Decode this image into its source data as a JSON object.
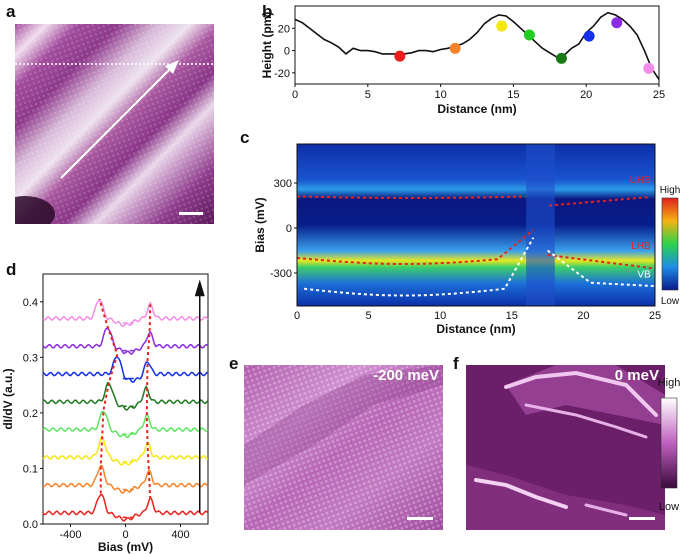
{
  "panels": {
    "a": {
      "letter": "a"
    },
    "b": {
      "letter": "b"
    },
    "c": {
      "letter": "c"
    },
    "d": {
      "letter": "d"
    },
    "e": {
      "letter": "e",
      "label": "-200 meV"
    },
    "f": {
      "letter": "f",
      "label": "0 meV"
    }
  },
  "chart_data": [
    {
      "id": "b",
      "type": "line",
      "xlabel": "Distance (nm)",
      "ylabel": "Height (pm)",
      "xlim": [
        0,
        25
      ],
      "ylim": [
        -30,
        40
      ],
      "xticks": [
        "0",
        "5",
        "10",
        "15",
        "20",
        "25"
      ],
      "yticks": [
        "20",
        "0",
        "-20"
      ],
      "profile": {
        "x": [
          0,
          0.5,
          1,
          1.5,
          2,
          2.5,
          3,
          3.5,
          4,
          4.5,
          5,
          5.5,
          6,
          6.5,
          7,
          7.5,
          8,
          8.5,
          9,
          9.5,
          10,
          10.5,
          11,
          11.5,
          12,
          12.5,
          13,
          13.5,
          14,
          14.5,
          15,
          15.5,
          16,
          16.5,
          17,
          17.5,
          18,
          18.5,
          19,
          19.5,
          20,
          20.5,
          21,
          21.5,
          22,
          22.5,
          23,
          23.5,
          24,
          24.5,
          25
        ],
        "y": [
          28,
          25,
          20,
          15,
          10,
          7,
          3,
          -3,
          2,
          0,
          0,
          -1,
          -3,
          -3,
          -3,
          -3,
          -2,
          0,
          0,
          -1,
          1,
          2,
          4,
          6,
          10,
          16,
          24,
          29,
          32,
          31,
          26,
          20,
          14,
          8,
          2,
          -2,
          -6,
          -4,
          2,
          6,
          16,
          22,
          30,
          34,
          32,
          28,
          22,
          14,
          0,
          -16,
          -26
        ]
      },
      "markers": [
        {
          "x": 7.2,
          "y": -5,
          "color": "#ee1c1c"
        },
        {
          "x": 11.0,
          "y": 2,
          "color": "#f5832a"
        },
        {
          "x": 14.2,
          "y": 22,
          "color": "#f5e80f"
        },
        {
          "x": 16.1,
          "y": 14,
          "color": "#22cc22"
        },
        {
          "x": 18.3,
          "y": -7,
          "color": "#1a7a1a"
        },
        {
          "x": 20.2,
          "y": 13,
          "color": "#1530e6"
        },
        {
          "x": 22.1,
          "y": 25,
          "color": "#8b2be2"
        },
        {
          "x": 24.3,
          "y": -16,
          "color": "#f28ce8"
        }
      ]
    },
    {
      "id": "c",
      "type": "heatmap",
      "xlabel": "Distance (nm)",
      "ylabel": "Bias (mV)",
      "xlim": [
        0,
        25
      ],
      "ylim": [
        -520,
        560
      ],
      "xticks": [
        "0",
        "5",
        "10",
        "15",
        "20",
        "25"
      ],
      "yticks": [
        "300",
        "0",
        "-300"
      ],
      "annotations": [
        "UHB",
        "LHB",
        "VB"
      ],
      "colorbar": {
        "high": "High",
        "low": "Low"
      }
    },
    {
      "id": "d",
      "type": "line",
      "xlabel": "Bias (mV)",
      "ylabel": "dI/dV (a.u.)",
      "xlim": [
        -600,
        600
      ],
      "ylim": [
        0,
        0.45
      ],
      "xticks": [
        "-400",
        "0",
        "400"
      ],
      "yticks": [
        "0.0",
        "0.1",
        "0.2",
        "0.3",
        "0.4"
      ],
      "series": [
        {
          "name": "red",
          "color": "#e8231e",
          "offset": 0.0
        },
        {
          "name": "orange",
          "color": "#f5832a",
          "offset": 0.05
        },
        {
          "name": "yellow",
          "color": "#f5e80f",
          "offset": 0.1
        },
        {
          "name": "light-green",
          "color": "#5ee65e",
          "offset": 0.15
        },
        {
          "name": "dark-green",
          "color": "#1f7a1f",
          "offset": 0.2
        },
        {
          "name": "blue",
          "color": "#1530e6",
          "offset": 0.25
        },
        {
          "name": "purple",
          "color": "#8b2be2",
          "offset": 0.3
        },
        {
          "name": "pink",
          "color": "#f28ce8",
          "offset": 0.35
        }
      ]
    },
    {
      "id": "colorbar-f",
      "type": "heatmap",
      "colorbar": {
        "high": "High",
        "low": "Low"
      }
    }
  ]
}
